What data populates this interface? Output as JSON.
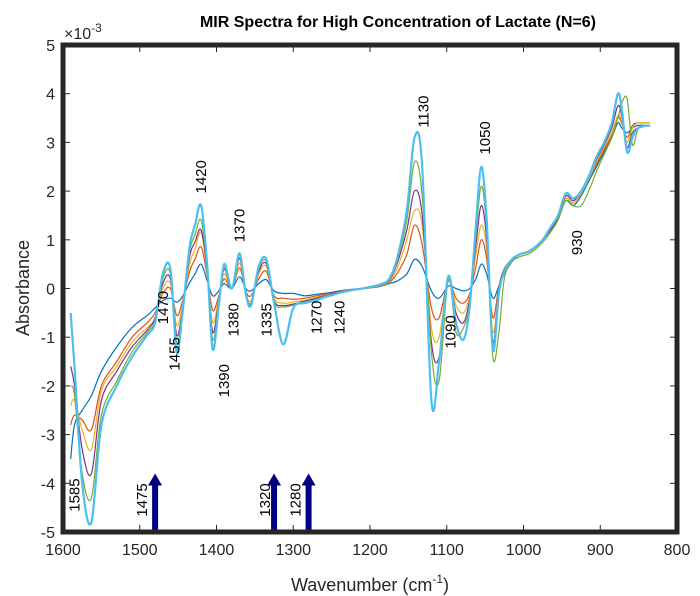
{
  "chart_data": {
    "type": "line",
    "title": "MIR Spectra for High Concentration of Lactate (N=6)",
    "xlabel": "Wavenumber (cm",
    "xlabel_sup": "-1",
    "xlabel_end": ")",
    "ylabel": "Absorbance",
    "y_exponent_base": "×10",
    "y_exponent_power": "-3",
    "xlim": [
      1600,
      800
    ],
    "x_reversed": true,
    "ylim": [
      -5,
      5
    ],
    "x_ticks": [
      1600,
      1500,
      1400,
      1300,
      1200,
      1100,
      1000,
      900,
      800
    ],
    "y_ticks": [
      5,
      4,
      3,
      2,
      1,
      0,
      -1,
      -2,
      -3,
      -4,
      -5
    ],
    "x_tick_labels": [
      "1600",
      "1500",
      "1400",
      "1300",
      "1200",
      "1100",
      "1000",
      "900",
      "800"
    ],
    "y_tick_labels": [
      "5",
      "4",
      "3",
      "2",
      "1",
      "0",
      "-1",
      "-2",
      "-3",
      "-4",
      "-5"
    ],
    "grid": false,
    "x": [
      1590,
      1585,
      1575,
      1563,
      1550,
      1530,
      1510,
      1490,
      1480,
      1470,
      1460,
      1452,
      1445,
      1435,
      1428,
      1420,
      1412,
      1405,
      1397,
      1390,
      1380,
      1370,
      1362,
      1355,
      1345,
      1335,
      1325,
      1313,
      1300,
      1285,
      1270,
      1260,
      1250,
      1240,
      1225,
      1210,
      1195,
      1185,
      1175,
      1165,
      1152,
      1142,
      1132,
      1120,
      1110,
      1098,
      1088,
      1078,
      1070,
      1062,
      1055,
      1048,
      1040,
      1032,
      1025,
      1015,
      1005,
      995,
      985,
      975,
      965,
      955,
      945,
      935,
      925,
      915,
      905,
      895,
      885,
      877,
      872,
      865,
      858,
      850,
      835
    ],
    "series": [
      {
        "color": "#0072bd",
        "values": [
          -3.5,
          -2.8,
          -2.5,
          -2.2,
          -1.7,
          -1.2,
          -0.8,
          -0.55,
          -0.4,
          -0.25,
          -0.2,
          -0.28,
          -0.18,
          0.12,
          0.3,
          0.5,
          0.15,
          -0.15,
          -0.05,
          0.1,
          0.0,
          0.24,
          0.0,
          -0.05,
          0.1,
          0.18,
          -0.05,
          -0.1,
          -0.1,
          -0.15,
          -0.12,
          -0.1,
          -0.08,
          -0.05,
          -0.02,
          0.0,
          0.02,
          0.05,
          0.1,
          0.15,
          0.3,
          0.6,
          0.45,
          -0.05,
          -0.2,
          0.05,
          0.0,
          -0.05,
          0.0,
          0.2,
          0.5,
          0.3,
          -0.2,
          0.05,
          0.3,
          0.55,
          0.7,
          0.75,
          0.85,
          1.0,
          1.2,
          1.45,
          1.8,
          1.7,
          1.9,
          2.2,
          2.5,
          2.8,
          3.1,
          3.4,
          3.3,
          3.2,
          3.3,
          3.35,
          3.35
        ]
      },
      {
        "color": "#d95319",
        "values": [
          -2.8,
          -2.6,
          -2.7,
          -2.9,
          -2.0,
          -1.5,
          -1.0,
          -0.7,
          -0.5,
          -0.1,
          0.0,
          -0.55,
          -0.3,
          0.35,
          0.6,
          0.85,
          0.25,
          -0.45,
          -0.15,
          0.2,
          0.0,
          0.42,
          -0.05,
          -0.15,
          0.2,
          0.35,
          -0.15,
          -0.2,
          -0.22,
          -0.2,
          -0.15,
          -0.12,
          -0.1,
          -0.06,
          -0.02,
          0.0,
          0.03,
          0.06,
          0.12,
          0.3,
          0.7,
          1.3,
          0.9,
          -0.4,
          -0.6,
          0.15,
          -0.2,
          -0.3,
          -0.1,
          0.45,
          1.0,
          0.6,
          -0.6,
          0.05,
          0.4,
          0.6,
          0.7,
          0.75,
          0.85,
          1.0,
          1.2,
          1.45,
          1.85,
          1.75,
          1.95,
          2.25,
          2.55,
          2.85,
          3.15,
          3.5,
          3.4,
          3.1,
          3.35,
          3.4,
          3.4
        ]
      },
      {
        "color": "#edb120",
        "values": [
          -2.4,
          -2.3,
          -2.9,
          -3.3,
          -2.1,
          -1.6,
          -1.1,
          -0.8,
          -0.6,
          0.0,
          0.1,
          -0.75,
          -0.4,
          0.5,
          0.8,
          1.15,
          0.3,
          -0.7,
          -0.2,
          0.3,
          0.0,
          0.52,
          -0.08,
          -0.25,
          0.3,
          0.45,
          -0.2,
          -0.3,
          -0.28,
          -0.24,
          -0.18,
          -0.14,
          -0.12,
          -0.07,
          -0.03,
          0.0,
          0.03,
          0.07,
          0.14,
          0.4,
          1.0,
          1.6,
          1.3,
          -0.8,
          -1.0,
          0.2,
          -0.35,
          -0.5,
          -0.15,
          0.7,
          1.3,
          0.8,
          -0.9,
          0.0,
          0.4,
          0.6,
          0.7,
          0.75,
          0.85,
          1.0,
          1.2,
          1.45,
          1.85,
          1.75,
          1.95,
          2.25,
          2.6,
          2.9,
          3.2,
          3.55,
          3.45,
          3.0,
          3.3,
          3.4,
          3.4
        ]
      },
      {
        "color": "#7e2f8e",
        "values": [
          -1.6,
          -2.0,
          -3.3,
          -3.8,
          -2.3,
          -1.7,
          -1.2,
          -0.85,
          -0.6,
          0.1,
          0.2,
          -0.95,
          -0.5,
          0.65,
          0.95,
          1.2,
          0.35,
          -0.9,
          -0.25,
          0.4,
          0.0,
          0.62,
          -0.1,
          -0.3,
          0.35,
          0.5,
          -0.25,
          -0.35,
          -0.32,
          -0.26,
          -0.2,
          -0.15,
          -0.12,
          -0.07,
          -0.03,
          0.0,
          0.04,
          0.08,
          0.16,
          0.5,
          1.2,
          2.0,
          1.5,
          -1.1,
          -1.4,
          0.2,
          -0.5,
          -0.7,
          -0.2,
          0.9,
          1.7,
          1.0,
          -1.1,
          0.0,
          0.4,
          0.6,
          0.7,
          0.75,
          0.85,
          1.0,
          1.2,
          1.45,
          1.9,
          1.8,
          2.0,
          2.3,
          2.65,
          2.95,
          3.3,
          3.75,
          3.55,
          2.9,
          3.2,
          3.3,
          3.35
        ]
      },
      {
        "color": "#77ac30",
        "values": [
          -2.0,
          -2.2,
          -3.8,
          -4.3,
          -2.6,
          -1.9,
          -1.3,
          -0.9,
          -0.65,
          0.2,
          0.3,
          -1.1,
          -0.55,
          0.75,
          1.1,
          1.4,
          0.4,
          -1.05,
          -0.3,
          0.45,
          0.0,
          0.68,
          -0.1,
          -0.32,
          0.4,
          0.55,
          -0.28,
          -0.38,
          -0.34,
          -0.28,
          -0.22,
          -0.16,
          -0.13,
          -0.08,
          -0.03,
          0.0,
          0.04,
          0.08,
          0.17,
          0.55,
          1.4,
          2.6,
          1.9,
          -1.3,
          -1.9,
          0.2,
          -0.9,
          -0.8,
          -0.3,
          1.1,
          2.1,
          1.2,
          -1.4,
          -0.9,
          0.2,
          0.55,
          0.65,
          0.7,
          0.8,
          0.95,
          1.15,
          1.4,
          1.8,
          1.7,
          1.7,
          2.0,
          2.4,
          2.75,
          3.1,
          3.5,
          3.8,
          3.9,
          2.95,
          3.3,
          3.35
        ]
      },
      {
        "color": "#4dbeee",
        "values": [
          -0.5,
          -1.6,
          -4.0,
          -4.8,
          -2.8,
          -2.0,
          -1.4,
          -0.95,
          -0.7,
          0.3,
          0.4,
          -1.3,
          -0.6,
          0.85,
          1.3,
          1.7,
          0.45,
          -1.25,
          -0.35,
          0.5,
          0.0,
          0.72,
          -0.1,
          -0.35,
          0.45,
          0.6,
          -0.3,
          -1.15,
          -0.4,
          -0.3,
          -0.24,
          -0.18,
          -0.14,
          -0.09,
          -0.04,
          0.0,
          0.05,
          0.09,
          0.2,
          0.6,
          1.6,
          3.1,
          2.5,
          -2.3,
          -1.5,
          0.25,
          -0.7,
          -1.05,
          -0.35,
          1.3,
          2.5,
          1.4,
          -1.25,
          -0.1,
          0.35,
          0.6,
          0.7,
          0.75,
          0.85,
          1.0,
          1.25,
          1.5,
          1.95,
          1.85,
          2.0,
          2.3,
          2.7,
          3.0,
          3.4,
          4.0,
          3.7,
          2.8,
          3.1,
          3.3,
          3.35
        ]
      }
    ],
    "annotations": [
      {
        "text": "1420",
        "x": 1420,
        "y": 1.95,
        "placement": "above"
      },
      {
        "text": "1370",
        "x": 1370,
        "y": 0.95,
        "placement": "above"
      },
      {
        "text": "1130",
        "x": 1130,
        "y": 3.3,
        "placement": "above"
      },
      {
        "text": "1050",
        "x": 1050,
        "y": 2.75,
        "placement": "above"
      },
      {
        "text": "930",
        "x": 930,
        "y": 1.2,
        "placement": "below"
      },
      {
        "text": "1470",
        "x": 1470,
        "y": -0.05,
        "placement": "below"
      },
      {
        "text": "1455",
        "x": 1455,
        "y": -1.0,
        "placement": "below"
      },
      {
        "text": "1390",
        "x": 1390,
        "y": -1.55,
        "placement": "below"
      },
      {
        "text": "1380",
        "x": 1378,
        "y": -0.3,
        "placement": "below"
      },
      {
        "text": "1335",
        "x": 1335,
        "y": -0.3,
        "placement": "below"
      },
      {
        "text": "1270",
        "x": 1270,
        "y": -0.25,
        "placement": "below"
      },
      {
        "text": "1240",
        "x": 1240,
        "y": -0.25,
        "placement": "below"
      },
      {
        "text": "1090",
        "x": 1095,
        "y": -0.55,
        "placement": "below"
      },
      {
        "text": "1585",
        "x": 1585,
        "y": -3.9,
        "placement": "below"
      },
      {
        "text": "1475",
        "x": 1497,
        "y": -4.0,
        "placement": "below"
      },
      {
        "text": "1320",
        "x": 1337,
        "y": -4.0,
        "placement": "below"
      },
      {
        "text": "1280",
        "x": 1297,
        "y": -4.0,
        "placement": "below"
      }
    ],
    "arrows": [
      {
        "x": 1480,
        "y_from": -5.0,
        "y_to": -3.8,
        "color": "#000080"
      },
      {
        "x": 1325,
        "y_from": -5.0,
        "y_to": -3.8,
        "color": "#000080"
      },
      {
        "x": 1280,
        "y_from": -5.0,
        "y_to": -3.8,
        "color": "#000080"
      }
    ]
  }
}
